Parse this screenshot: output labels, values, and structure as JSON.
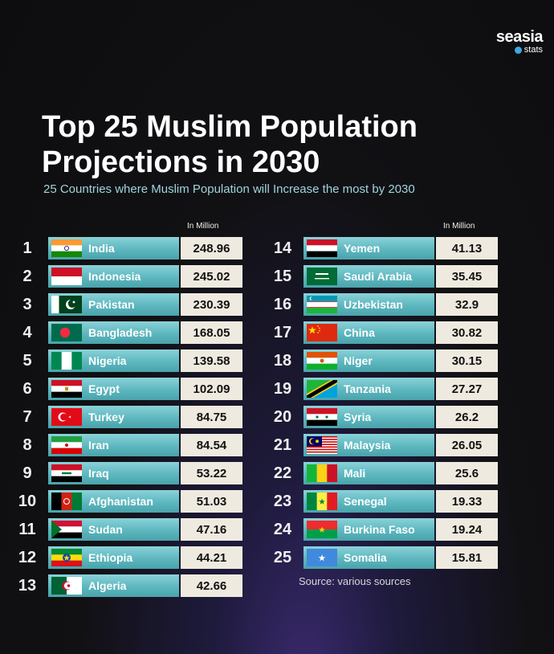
{
  "logo": {
    "brand": "seasia",
    "sub": "stats"
  },
  "title": "Top 25 Muslim Population Projections in 2030",
  "subtitle": "25 Countries where Muslim Population will Increase the most by 2030",
  "unit_label": "In Million",
  "source": "Source: various sources",
  "chart_data": {
    "type": "table",
    "title": "Top 25 Muslim Population Projections in 2030",
    "subtitle": "25 Countries where Muslim Population will Increase the most by 2030",
    "unit": "In Million",
    "rows": [
      {
        "rank": "1",
        "country": "India",
        "value": "248.96",
        "flag": "india"
      },
      {
        "rank": "2",
        "country": "Indonesia",
        "value": "245.02",
        "flag": "indonesia"
      },
      {
        "rank": "3",
        "country": "Pakistan",
        "value": "230.39",
        "flag": "pakistan"
      },
      {
        "rank": "4",
        "country": "Bangladesh",
        "value": "168.05",
        "flag": "bangladesh"
      },
      {
        "rank": "5",
        "country": "Nigeria",
        "value": "139.58",
        "flag": "nigeria"
      },
      {
        "rank": "6",
        "country": "Egypt",
        "value": "102.09",
        "flag": "egypt"
      },
      {
        "rank": "7",
        "country": "Turkey",
        "value": "84.75",
        "flag": "turkey"
      },
      {
        "rank": "8",
        "country": "Iran",
        "value": "84.54",
        "flag": "iran"
      },
      {
        "rank": "9",
        "country": "Iraq",
        "value": "53.22",
        "flag": "iraq"
      },
      {
        "rank": "10",
        "country": "Afghanistan",
        "value": "51.03",
        "flag": "afghanistan"
      },
      {
        "rank": "11",
        "country": "Sudan",
        "value": "47.16",
        "flag": "sudan"
      },
      {
        "rank": "12",
        "country": "Ethiopia",
        "value": "44.21",
        "flag": "ethiopia"
      },
      {
        "rank": "13",
        "country": "Algeria",
        "value": "42.66",
        "flag": "algeria"
      },
      {
        "rank": "14",
        "country": "Yemen",
        "value": "41.13",
        "flag": "yemen"
      },
      {
        "rank": "15",
        "country": "Saudi Arabia",
        "value": "35.45",
        "flag": "saudi-arabia"
      },
      {
        "rank": "16",
        "country": "Uzbekistan",
        "value": "32.9",
        "flag": "uzbekistan"
      },
      {
        "rank": "17",
        "country": "China",
        "value": "30.82",
        "flag": "china"
      },
      {
        "rank": "18",
        "country": "Niger",
        "value": "30.15",
        "flag": "niger"
      },
      {
        "rank": "19",
        "country": "Tanzania",
        "value": "27.27",
        "flag": "tanzania"
      },
      {
        "rank": "20",
        "country": "Syria",
        "value": "26.2",
        "flag": "syria"
      },
      {
        "rank": "21",
        "country": "Malaysia",
        "value": "26.05",
        "flag": "malaysia"
      },
      {
        "rank": "22",
        "country": "Mali",
        "value": "25.6",
        "flag": "mali"
      },
      {
        "rank": "23",
        "country": "Senegal",
        "value": "19.33",
        "flag": "senegal"
      },
      {
        "rank": "24",
        "country": "Burkina Faso",
        "value": "19.24",
        "flag": "burkina-faso"
      },
      {
        "rank": "25",
        "country": "Somalia",
        "value": "15.81",
        "flag": "somalia"
      }
    ]
  }
}
